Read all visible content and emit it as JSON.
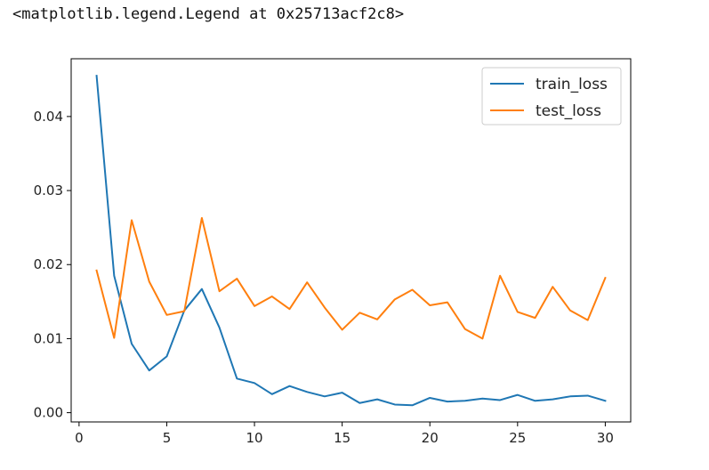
{
  "output": {
    "repr_text": "<matplotlib.legend.Legend at 0x25713acf2c8>"
  },
  "chart_data": {
    "type": "line",
    "title": "",
    "xlabel": "",
    "ylabel": "",
    "x": [
      1,
      2,
      3,
      4,
      5,
      6,
      7,
      8,
      9,
      10,
      11,
      12,
      13,
      14,
      15,
      16,
      17,
      18,
      19,
      20,
      21,
      22,
      23,
      24,
      25,
      26,
      27,
      28,
      29,
      30
    ],
    "xlim": [
      -0.45,
      31.45
    ],
    "ylim": [
      -0.00125,
      0.0478
    ],
    "xticks": [
      0,
      5,
      10,
      15,
      20,
      25,
      30
    ],
    "xtick_labels": [
      "0",
      "5",
      "10",
      "15",
      "20",
      "25",
      "30"
    ],
    "yticks": [
      0.0,
      0.01,
      0.02,
      0.03,
      0.04
    ],
    "ytick_labels": [
      "0.00",
      "0.01",
      "0.02",
      "0.03",
      "0.04"
    ],
    "grid": false,
    "legend_position": "top-right",
    "series": [
      {
        "name": "train_loss",
        "color": "#1f77b4",
        "values": [
          0.0455,
          0.0185,
          0.0093,
          0.0057,
          0.0076,
          0.0138,
          0.0167,
          0.0115,
          0.0046,
          0.004,
          0.0025,
          0.0036,
          0.0028,
          0.0022,
          0.0027,
          0.0013,
          0.0018,
          0.0011,
          0.001,
          0.002,
          0.0015,
          0.0016,
          0.0019,
          0.0017,
          0.0024,
          0.0016,
          0.0018,
          0.0022,
          0.0023,
          0.0016
        ]
      },
      {
        "name": "test_loss",
        "color": "#ff7f0e",
        "values": [
          0.0192,
          0.0101,
          0.026,
          0.0177,
          0.0132,
          0.0137,
          0.0263,
          0.0164,
          0.0181,
          0.0144,
          0.0157,
          0.014,
          0.0176,
          0.0142,
          0.0112,
          0.0135,
          0.0126,
          0.0153,
          0.0166,
          0.0145,
          0.0149,
          0.0113,
          0.01,
          0.0185,
          0.0136,
          0.0128,
          0.017,
          0.0138,
          0.0125,
          0.0182
        ]
      }
    ]
  }
}
